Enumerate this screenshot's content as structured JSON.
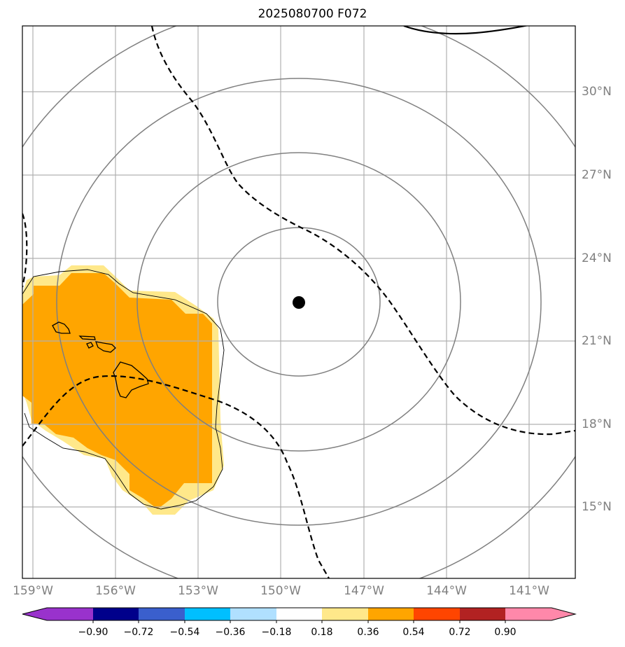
{
  "title": "2025080700 F072",
  "map": {
    "lon_ticks": [
      "159°W",
      "156°W",
      "153°W",
      "150°W",
      "147°W",
      "144°W",
      "141°W"
    ],
    "lat_ticks": [
      "30°N",
      "27°N",
      "24°N",
      "21°N",
      "18°N",
      "15°N"
    ],
    "center_marker": "storm-center-dot",
    "colors": {
      "orange_region": "#ffa500",
      "light_yellow_border": "#ffe88a",
      "range_rings": "#808080",
      "grid": "#b0b0b0",
      "contours": "#000000"
    }
  },
  "colorbar": {
    "levels": [
      "−0.90",
      "−0.72",
      "−0.54",
      "−0.36",
      "−0.18",
      "0.18",
      "0.36",
      "0.54",
      "0.72",
      "0.90"
    ],
    "colors": [
      "#9932cc",
      "#00008b",
      "#3a5fcd",
      "#00bfff",
      "#b0e0ff",
      "#ffffff",
      "#ffe88a",
      "#ffa500",
      "#ff4500",
      "#b22222",
      "#ff88aa"
    ]
  }
}
